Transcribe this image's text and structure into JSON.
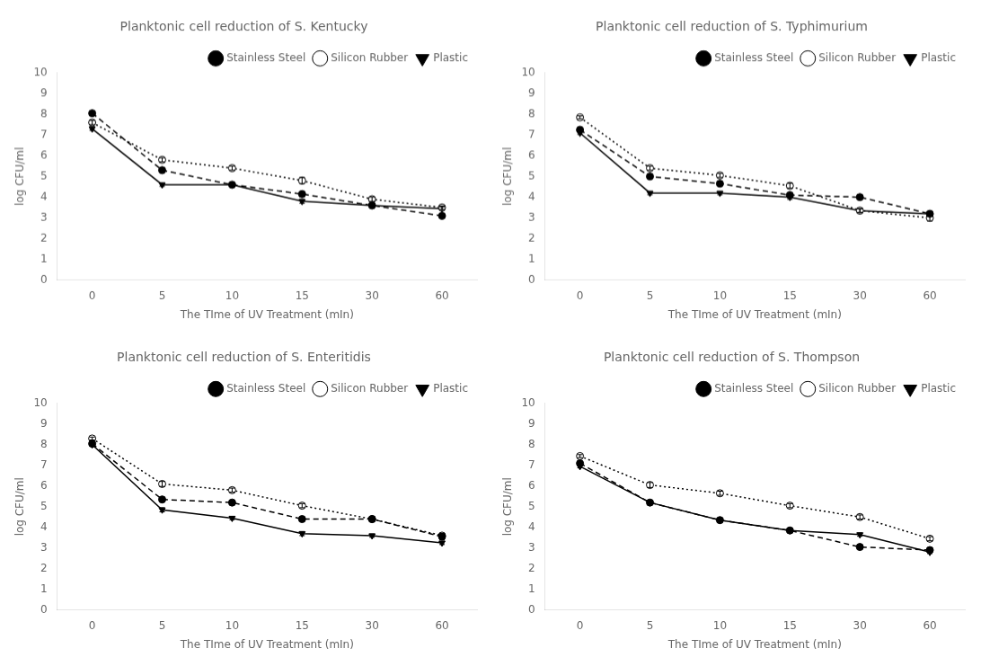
{
  "chart_data": [
    {
      "type": "line",
      "title": "Planktonic cell reduction of S. Kentucky",
      "xlabel": "The TIme of UV Treatment (mIn)",
      "ylabel": "log CFU/ml",
      "categories": [
        "0",
        "5",
        "10",
        "15",
        "30",
        "60"
      ],
      "series": [
        {
          "name": "Stainless Steel",
          "color": "#000000",
          "line_style": "dashed",
          "marker": "circle",
          "values": [
            8.05,
            5.3,
            4.6,
            4.15,
            3.6,
            3.1
          ],
          "yerr": [
            0.07,
            0.1,
            0.1,
            0.12,
            0.08,
            0.08
          ]
        },
        {
          "name": "Silicon Rubber",
          "color": "#000000",
          "line_style": "dotted",
          "marker": "open_circle",
          "values": [
            7.6,
            5.8,
            5.4,
            4.8,
            3.9,
            3.5
          ],
          "yerr": [
            0.1,
            0.1,
            0.1,
            0.15,
            0.1,
            0.08
          ]
        },
        {
          "name": "Plastic",
          "color": "#000000",
          "line_style": "solid",
          "marker": "triangle_down",
          "values": [
            7.3,
            4.6,
            4.6,
            3.8,
            3.6,
            3.45
          ],
          "yerr": [
            0.08,
            0.08,
            0.08,
            0.1,
            0.08,
            0.08
          ]
        }
      ],
      "ylim": [
        0,
        10
      ],
      "yticks": [
        0,
        1,
        2,
        3,
        4,
        5,
        6,
        7,
        8,
        9,
        10
      ],
      "grid": false,
      "legend": "upper right"
    },
    {
      "type": "line",
      "title": "Planktonic cell reduction of S. Typhimurium",
      "xlabel": "The TIme of UV Treatment (mIn)",
      "ylabel": "log CFU/ml",
      "categories": [
        "0",
        "5",
        "10",
        "15",
        "30",
        "60"
      ],
      "series": [
        {
          "name": "Stainless Steel",
          "color": "#000000",
          "line_style": "dashed",
          "marker": "circle",
          "values": [
            7.25,
            5.0,
            4.65,
            4.1,
            4.0,
            3.2
          ],
          "yerr": [
            0.07,
            0.1,
            0.1,
            0.1,
            0.1,
            0.1
          ]
        },
        {
          "name": "Silicon Rubber",
          "color": "#000000",
          "line_style": "dotted",
          "marker": "open_circle",
          "values": [
            7.85,
            5.4,
            5.05,
            4.55,
            3.35,
            3.0
          ],
          "yerr": [
            0.07,
            0.1,
            0.1,
            0.12,
            0.1,
            0.15
          ]
        },
        {
          "name": "Plastic",
          "color": "#000000",
          "line_style": "solid",
          "marker": "triangle_down",
          "values": [
            7.1,
            4.2,
            4.2,
            4.0,
            3.35,
            3.2
          ],
          "yerr": [
            0.07,
            0.08,
            0.08,
            0.1,
            0.08,
            0.1
          ]
        }
      ],
      "ylim": [
        0,
        10
      ],
      "yticks": [
        0,
        1,
        2,
        3,
        4,
        5,
        6,
        7,
        8,
        9,
        10
      ],
      "grid": false,
      "legend": "upper right"
    },
    {
      "type": "line",
      "title": "Planktonic cell reduction of S. Enteritidis",
      "xlabel": "The TIme of UV Treatment (mIn)",
      "ylabel": "log CFU/ml",
      "categories": [
        "0",
        "5",
        "10",
        "15",
        "30",
        "60"
      ],
      "series": [
        {
          "name": "Stainless Steel",
          "color": "#000000",
          "line_style": "dashed",
          "marker": "circle",
          "values": [
            8.05,
            5.35,
            5.2,
            4.4,
            4.4,
            3.55
          ],
          "yerr": [
            0.07,
            0.1,
            0.1,
            0.08,
            0.1,
            0.15
          ]
        },
        {
          "name": "Silicon Rubber",
          "color": "#000000",
          "line_style": "dotted",
          "marker": "open_circle",
          "values": [
            8.3,
            6.1,
            5.8,
            5.05,
            4.4,
            3.6
          ],
          "yerr": [
            0.07,
            0.12,
            0.1,
            0.1,
            0.1,
            0.1
          ]
        },
        {
          "name": "Plastic",
          "color": "#000000",
          "line_style": "solid",
          "marker": "triangle_down",
          "values": [
            8.0,
            4.85,
            4.45,
            3.7,
            3.6,
            3.25
          ],
          "yerr": [
            0.07,
            0.1,
            0.08,
            0.1,
            0.08,
            0.08
          ]
        }
      ],
      "ylim": [
        0,
        10
      ],
      "yticks": [
        0,
        1,
        2,
        3,
        4,
        5,
        6,
        7,
        8,
        9,
        10
      ],
      "grid": false,
      "legend": "upper right"
    },
    {
      "type": "line",
      "title": "Planktonic cell reduction of S. Thompson",
      "xlabel": "The TIme of UV Treatment (mIn)",
      "ylabel": "log CFU/ml",
      "categories": [
        "0",
        "5",
        "10",
        "15",
        "30",
        "60"
      ],
      "series": [
        {
          "name": "Stainless Steel",
          "color": "#000000",
          "line_style": "dashed",
          "marker": "circle",
          "values": [
            7.1,
            5.2,
            4.35,
            3.85,
            3.05,
            2.9
          ],
          "yerr": [
            0.07,
            0.1,
            0.1,
            0.08,
            0.08,
            0.08
          ]
        },
        {
          "name": "Silicon Rubber",
          "color": "#000000",
          "line_style": "dotted",
          "marker": "open_circle",
          "values": [
            7.45,
            6.05,
            5.65,
            5.05,
            4.5,
            3.45
          ],
          "yerr": [
            0.07,
            0.12,
            0.1,
            0.1,
            0.1,
            0.1
          ]
        },
        {
          "name": "Plastic",
          "color": "#000000",
          "line_style": "solid",
          "marker": "triangle_down",
          "values": [
            6.95,
            5.2,
            4.35,
            3.85,
            3.65,
            2.8
          ],
          "yerr": [
            0.07,
            0.08,
            0.08,
            0.08,
            0.08,
            0.07
          ]
        }
      ],
      "ylim": [
        0,
        10
      ],
      "yticks": [
        0,
        1,
        2,
        3,
        4,
        5,
        6,
        7,
        8,
        9,
        10
      ],
      "grid": false,
      "legend": "upper right"
    }
  ]
}
